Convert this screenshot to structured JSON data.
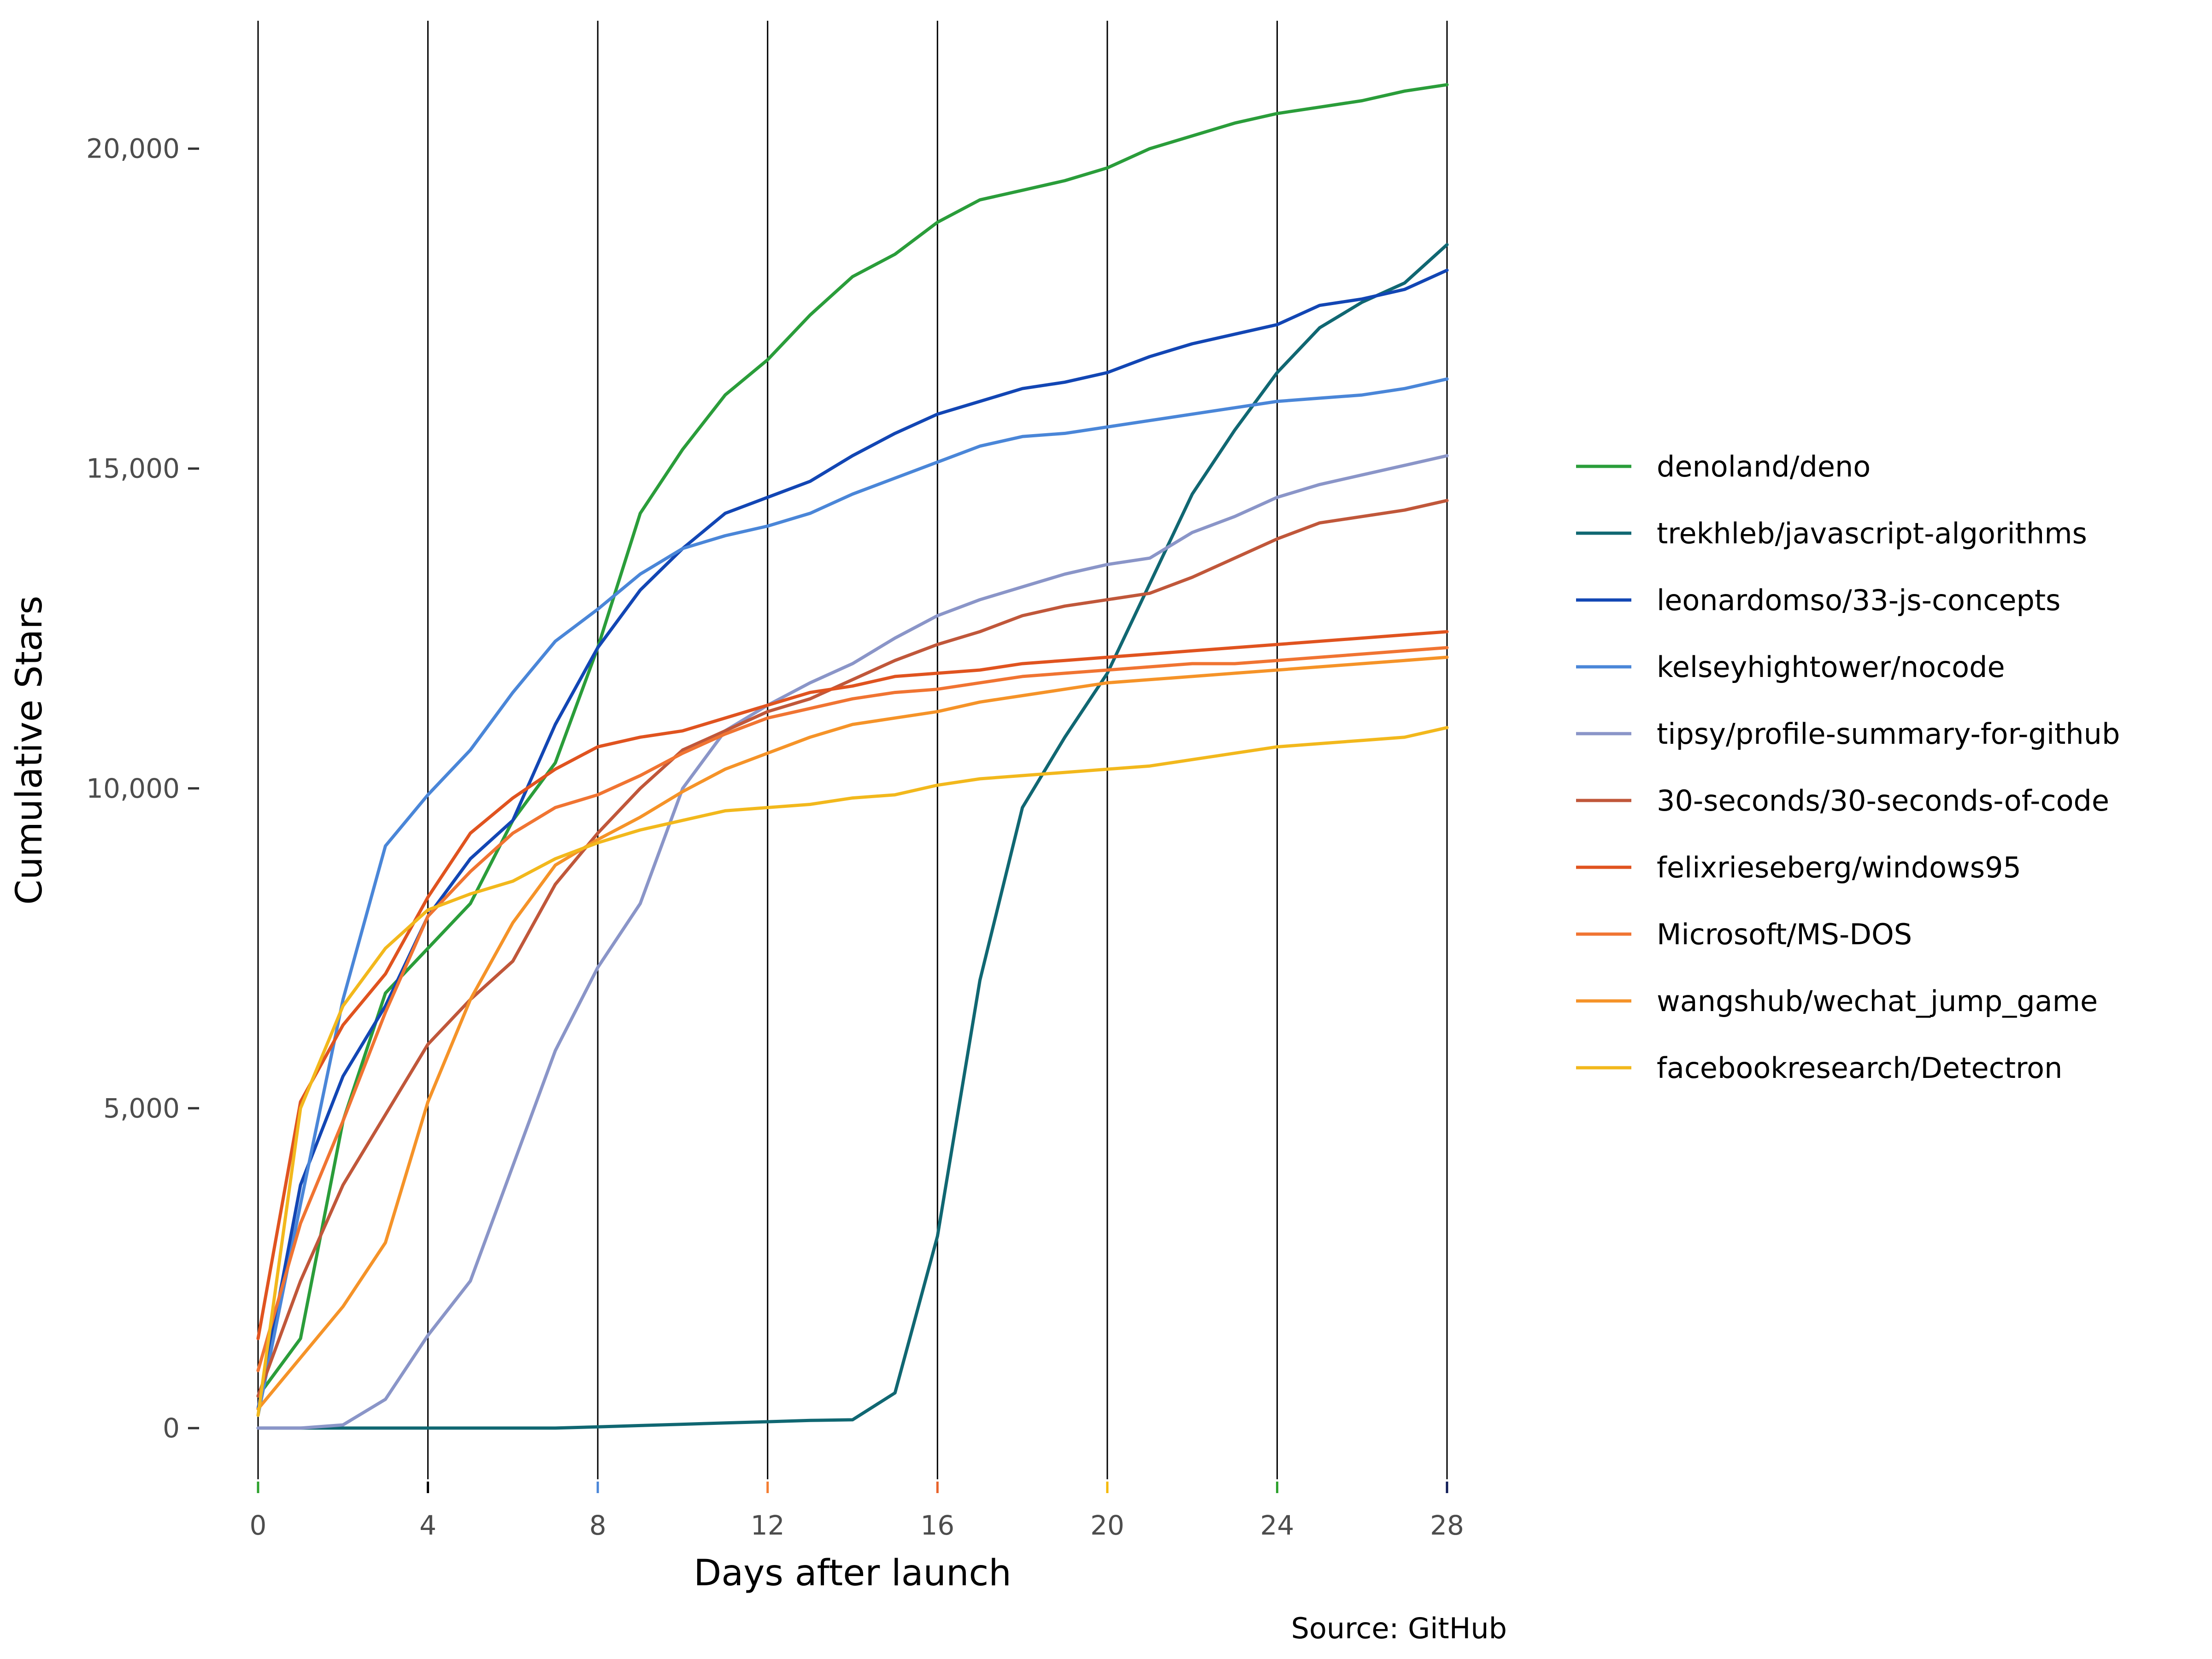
{
  "chart_data": {
    "type": "line",
    "title": "",
    "xlabel": "Days after launch",
    "ylabel": "Cumulative Stars",
    "caption": "Source: GitHub",
    "xlim": [
      0,
      28
    ],
    "ylim": [
      -800,
      22000
    ],
    "x_ticks": [
      0,
      4,
      8,
      12,
      16,
      20,
      24,
      28
    ],
    "x_tick_labels": [
      "0",
      "4",
      "8",
      "12",
      "16",
      "20",
      "24",
      "28"
    ],
    "y_ticks": [
      0,
      5000,
      10000,
      15000,
      20000
    ],
    "y_tick_labels": [
      "0",
      "5,000",
      "10,000",
      "15,000",
      "20,000"
    ],
    "vertical_gridlines": true,
    "horizontal_gridlines": false,
    "legend_position": "right",
    "x_tick_colors": [
      "#2ca02c",
      "#000000",
      "#4a86d8",
      "#f47c30",
      "#e8622a",
      "#f5b800",
      "#2ca02c",
      "#0e1a55"
    ],
    "series": [
      {
        "name": "denoland/deno",
        "color": "#2a9d3a",
        "x": [
          0,
          1,
          2,
          3,
          4,
          5,
          6,
          7,
          8,
          9,
          10,
          11,
          12,
          13,
          14,
          15,
          16,
          17,
          18,
          19,
          20,
          21,
          22,
          23,
          24,
          25,
          26,
          27,
          28
        ],
        "values": [
          500,
          1400,
          4800,
          6800,
          7500,
          8200,
          9500,
          10400,
          12200,
          14300,
          15300,
          16150,
          16700,
          17400,
          18000,
          18350,
          18850,
          19200,
          19350,
          19500,
          19700,
          20000,
          20200,
          20400,
          20550,
          20650,
          20750,
          20900,
          21000
        ]
      },
      {
        "name": "trekhleb/javascript-algorithms",
        "color": "#106772",
        "x": [
          0,
          1,
          2,
          3,
          4,
          5,
          6,
          7,
          8,
          9,
          10,
          11,
          12,
          13,
          14,
          15,
          16,
          17,
          18,
          19,
          20,
          21,
          22,
          23,
          24,
          25,
          26,
          27,
          28
        ],
        "values": [
          0,
          0,
          0,
          0,
          0,
          0,
          0,
          0,
          20,
          40,
          60,
          80,
          100,
          120,
          130,
          550,
          3000,
          7000,
          9700,
          10800,
          11800,
          13200,
          14600,
          15600,
          16500,
          17200,
          17600,
          17900,
          18500
        ]
      },
      {
        "name": "leonardomso/33-js-concepts",
        "color": "#1246b4",
        "x": [
          0,
          1,
          2,
          3,
          4,
          5,
          6,
          7,
          8,
          9,
          10,
          11,
          12,
          13,
          14,
          15,
          16,
          17,
          18,
          19,
          20,
          21,
          22,
          23,
          24,
          25,
          26,
          27,
          28
        ],
        "values": [
          300,
          3800,
          5500,
          6600,
          8000,
          8900,
          9500,
          11000,
          12200,
          13100,
          13750,
          14300,
          14550,
          14800,
          15200,
          15550,
          15850,
          16050,
          16250,
          16350,
          16500,
          16750,
          16950,
          17100,
          17250,
          17550,
          17650,
          17800,
          18100
        ]
      },
      {
        "name": "kelseyhightower/nocode",
        "color": "#4a86d8",
        "x": [
          0,
          1,
          2,
          3,
          4,
          5,
          6,
          7,
          8,
          9,
          10,
          11,
          12,
          13,
          14,
          15,
          16,
          17,
          18,
          19,
          20,
          21,
          22,
          23,
          24,
          25,
          26,
          27,
          28
        ],
        "values": [
          200,
          3500,
          6700,
          9100,
          9900,
          10600,
          11500,
          12300,
          12800,
          13350,
          13750,
          13950,
          14100,
          14300,
          14600,
          14850,
          15100,
          15350,
          15500,
          15550,
          15650,
          15750,
          15850,
          15950,
          16050,
          16100,
          16150,
          16250,
          16400
        ]
      },
      {
        "name": "tipsy/profile-summary-for-github",
        "color": "#8a95c8",
        "x": [
          0,
          1,
          2,
          3,
          4,
          5,
          6,
          7,
          8,
          9,
          10,
          11,
          12,
          13,
          14,
          15,
          16,
          17,
          18,
          19,
          20,
          21,
          22,
          23,
          24,
          25,
          26,
          27,
          28
        ],
        "values": [
          0,
          0,
          50,
          450,
          1450,
          2300,
          4100,
          5900,
          7200,
          8200,
          10000,
          10900,
          11300,
          11650,
          11950,
          12350,
          12700,
          12950,
          13150,
          13350,
          13500,
          13600,
          14000,
          14250,
          14550,
          14750,
          14900,
          15050,
          15200
        ]
      },
      {
        "name": "30-seconds/30-seconds-of-code",
        "color": "#c0573a",
        "x": [
          0,
          1,
          2,
          3,
          4,
          5,
          6,
          7,
          8,
          9,
          10,
          11,
          12,
          13,
          14,
          15,
          16,
          17,
          18,
          19,
          20,
          21,
          22,
          23,
          24,
          25,
          26,
          27,
          28
        ],
        "values": [
          500,
          2300,
          3800,
          4900,
          6000,
          6700,
          7300,
          8500,
          9300,
          10000,
          10600,
          10900,
          11200,
          11400,
          11700,
          12000,
          12250,
          12450,
          12700,
          12850,
          12950,
          13050,
          13300,
          13600,
          13900,
          14150,
          14250,
          14350,
          14500
        ]
      },
      {
        "name": "felixrieseberg/windows95",
        "color": "#e0531f",
        "x": [
          0,
          1,
          2,
          3,
          4,
          5,
          6,
          7,
          8,
          9,
          10,
          11,
          12,
          13,
          14,
          15,
          16,
          17,
          18,
          19,
          20,
          21,
          22,
          23,
          24,
          25,
          26,
          27,
          28
        ],
        "values": [
          1400,
          5100,
          6300,
          7100,
          8300,
          9300,
          9850,
          10300,
          10650,
          10800,
          10900,
          11100,
          11300,
          11500,
          11600,
          11750,
          11800,
          11850,
          11950,
          12000,
          12050,
          12100,
          12150,
          12200,
          12250,
          12300,
          12350,
          12400,
          12450
        ]
      },
      {
        "name": "Microsoft/MS-DOS",
        "color": "#f07432",
        "x": [
          0,
          1,
          2,
          3,
          4,
          5,
          6,
          7,
          8,
          9,
          10,
          11,
          12,
          13,
          14,
          15,
          16,
          17,
          18,
          19,
          20,
          21,
          22,
          23,
          24,
          25,
          26,
          27,
          28
        ],
        "values": [
          900,
          3200,
          4800,
          6500,
          8000,
          8700,
          9300,
          9700,
          9900,
          10200,
          10550,
          10850,
          11100,
          11250,
          11400,
          11500,
          11550,
          11650,
          11750,
          11800,
          11850,
          11900,
          11950,
          11950,
          12000,
          12050,
          12100,
          12150,
          12200
        ]
      },
      {
        "name": "wangshub/wechat_jump_game",
        "color": "#f59328",
        "x": [
          0,
          1,
          2,
          3,
          4,
          5,
          6,
          7,
          8,
          9,
          10,
          11,
          12,
          13,
          14,
          15,
          16,
          17,
          18,
          19,
          20,
          21,
          22,
          23,
          24,
          25,
          26,
          27,
          28
        ],
        "values": [
          300,
          1100,
          1900,
          2900,
          5100,
          6700,
          7900,
          8800,
          9200,
          9550,
          9950,
          10300,
          10550,
          10800,
          11000,
          11100,
          11200,
          11350,
          11450,
          11550,
          11650,
          11700,
          11750,
          11800,
          11850,
          11900,
          11950,
          12000,
          12050
        ]
      },
      {
        "name": "facebookresearch/Detectron",
        "color": "#f2b81c",
        "x": [
          0,
          1,
          2,
          3,
          4,
          5,
          6,
          7,
          8,
          9,
          10,
          11,
          12,
          13,
          14,
          15,
          16,
          17,
          18,
          19,
          20,
          21,
          22,
          23,
          24,
          25,
          26,
          27,
          28
        ],
        "values": [
          200,
          5000,
          6600,
          7500,
          8100,
          8350,
          8550,
          8900,
          9150,
          9350,
          9500,
          9650,
          9700,
          9750,
          9850,
          9900,
          10050,
          10150,
          10200,
          10250,
          10300,
          10350,
          10450,
          10550,
          10650,
          10700,
          10750,
          10800,
          10950
        ]
      }
    ]
  }
}
